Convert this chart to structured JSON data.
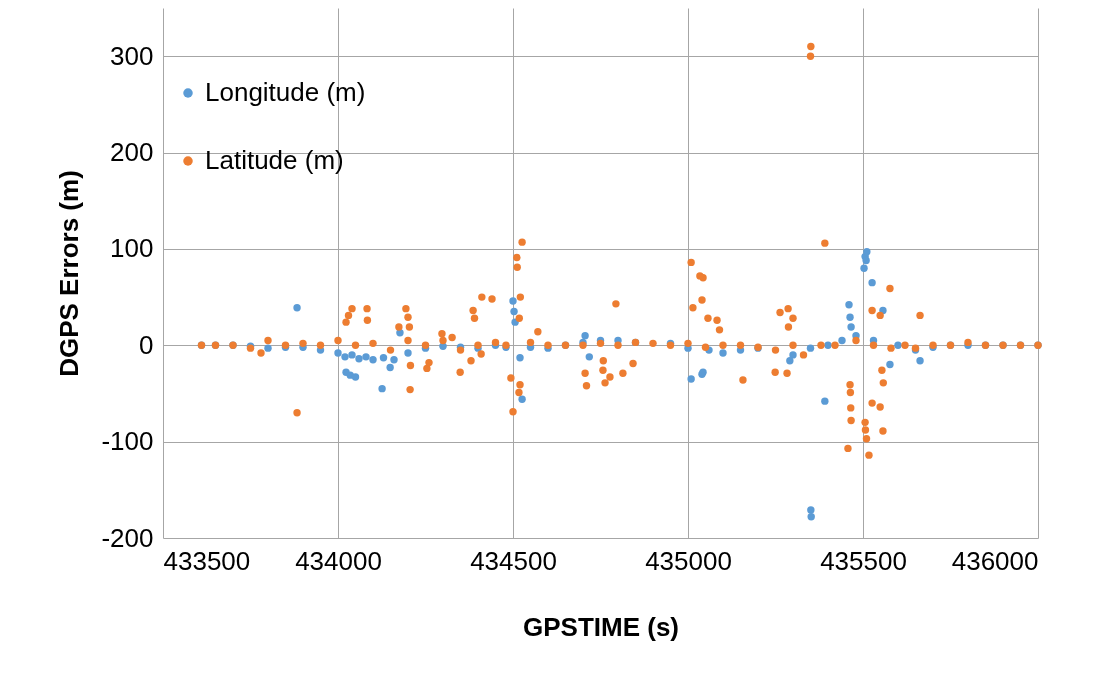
{
  "chart_data": {
    "type": "scatter",
    "xlabel": "GPSTIME (s)",
    "ylabel": "DGPS Errors (m)",
    "xlim": [
      433500,
      436000
    ],
    "xticks": [
      433500,
      434000,
      434500,
      435000,
      435500,
      436000
    ],
    "ylim": [
      -200,
      350
    ],
    "yticks": [
      -200,
      -100,
      0,
      100,
      200,
      300
    ],
    "grid": true,
    "legend": "top left",
    "marker": "circle",
    "series": [
      {
        "name": "Longitude (m)",
        "color": "#5b9bd5",
        "x": [
          433610,
          433650,
          433700,
          433750,
          433800,
          433850,
          433900,
          433950,
          434000,
          434020,
          434040,
          434060,
          434080,
          434100,
          434130,
          434160,
          434200,
          434250,
          434300,
          434350,
          434400,
          434450,
          434480,
          434550,
          434600,
          434650,
          434700,
          434750,
          434800,
          434850,
          434900,
          434950,
          435000,
          435060,
          435100,
          435150,
          435200,
          435250,
          435300,
          435350,
          435400,
          435440,
          435480,
          435530,
          435600,
          435650,
          435700,
          435750,
          435800,
          435850,
          435900,
          435950,
          436000,
          433883,
          434023,
          434035,
          434050,
          434126,
          434149,
          434177,
          434500,
          434503,
          434506,
          434520,
          434526,
          434706,
          434718,
          435009,
          435040,
          435043,
          435291,
          435351,
          435352,
          435391,
          435460,
          435463,
          435466,
          435506,
          435511,
          435509,
          435503,
          435526,
          435557,
          435577,
          435663
        ],
        "values": [
          0,
          0,
          0,
          -1,
          -3,
          -2,
          -2,
          -5,
          -8,
          -12,
          -10,
          -14,
          -12,
          -15,
          -13,
          -15,
          -8,
          -3,
          -1,
          -2,
          -3,
          0,
          -2,
          -2,
          -3,
          0,
          3,
          5,
          5,
          3,
          null,
          2,
          -3,
          -5,
          -8,
          -5,
          -3,
          null,
          -10,
          -3,
          0,
          5,
          10,
          5,
          0,
          -5,
          -2,
          0,
          0,
          0,
          0,
          0,
          0,
          39,
          -28,
          -31,
          -33,
          -45,
          -23,
          13,
          46,
          35,
          24,
          -13,
          -56,
          10,
          -12,
          -35,
          -30,
          -28,
          -16,
          -171,
          -178,
          -58,
          42,
          29,
          19,
          92,
          97,
          88,
          80,
          65,
          36,
          -20,
          -16
        ]
      },
      {
        "name": "Latitude (m)",
        "color": "#ed7d31",
        "x": [
          433610,
          433650,
          433700,
          433750,
          433780,
          433800,
          433850,
          433900,
          433950,
          434000,
          434050,
          434100,
          434150,
          434200,
          434250,
          434300,
          434350,
          434400,
          434450,
          434480,
          434550,
          434600,
          434650,
          434700,
          434750,
          434800,
          434850,
          434900,
          434950,
          435000,
          435050,
          435100,
          435150,
          435200,
          435250,
          435300,
          435330,
          435380,
          435420,
          435480,
          435530,
          435580,
          435620,
          435650,
          435700,
          435750,
          435800,
          435850,
          435900,
          435950,
          436000,
          433883,
          434023,
          434030,
          434040,
          434083,
          434084,
          434194,
          434200,
          434204,
          434174,
          434206,
          434207,
          434254,
          434260,
          434297,
          434326,
          434386,
          434390,
          434411,
          434440,
          434349,
          434380,
          434409,
          434526,
          434511,
          434512,
          434521,
          434518,
          434494,
          434500,
          434520,
          434517,
          434571,
          434706,
          434710,
          434794,
          434763,
          434777,
          434757,
          434758,
          434814,
          434843,
          435009,
          435043,
          435034,
          435014,
          435040,
          435057,
          435083,
          435090,
          435157,
          435249,
          435283,
          435263,
          435286,
          435300,
          435287,
          435391,
          435351,
          435350,
          435463,
          435464,
          435465,
          435466,
          435457,
          435506,
          435507,
          435510,
          435517,
          435526,
          435549,
          435557,
          435554,
          435558,
          435577,
          435526,
          435549,
          435663
        ],
        "values": [
          0,
          0,
          0,
          -3,
          -8,
          5,
          0,
          2,
          0,
          5,
          0,
          2,
          -5,
          5,
          0,
          5,
          -5,
          0,
          3,
          0,
          3,
          0,
          0,
          0,
          2,
          0,
          3,
          2,
          0,
          2,
          -2,
          0,
          0,
          -2,
          -5,
          0,
          -10,
          0,
          0,
          5,
          0,
          -3,
          0,
          -3,
          0,
          0,
          3,
          0,
          0,
          0,
          0,
          -70,
          24,
          31,
          38,
          38,
          26,
          38,
          29,
          19,
          19,
          -46,
          -21,
          -24,
          -18,
          12,
          8,
          36,
          28,
          50,
          48,
          -28,
          -16,
          -9,
          107,
          91,
          81,
          50,
          28,
          -34,
          -69,
          -41,
          -49,
          14,
          -29,
          -42,
          43,
          -39,
          -33,
          -26,
          -16,
          -29,
          -19,
          86,
          70,
          72,
          39,
          47,
          28,
          26,
          16,
          -36,
          -28,
          -29,
          34,
          38,
          28,
          19,
          106,
          310,
          300,
          -41,
          -49,
          -65,
          -78,
          -107,
          -80,
          -88,
          -97,
          -114,
          -60,
          -64,
          -89,
          -26,
          -39,
          59,
          36,
          31,
          31
        ]
      }
    ]
  }
}
